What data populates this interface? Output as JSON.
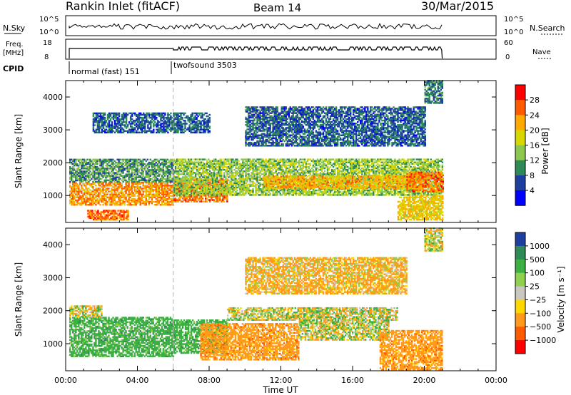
{
  "header": {
    "station": "Rankin Inlet (fitACF)",
    "beam": "Beam 14",
    "date": "30/Mar/2015"
  },
  "top_panels": {
    "nsky_label": "N.Sky",
    "nsky_ticks": [
      "10^5",
      "10^0"
    ],
    "nsearch_label": "N.Search",
    "nsearch_ticks": [
      "10^5",
      "10^0"
    ],
    "freq_label_1": "Freq.",
    "freq_label_2": "[MHz]",
    "freq_ticks": [
      "18",
      "8"
    ],
    "nave_label": "Nave",
    "nave_ticks": [
      "60",
      "0"
    ],
    "cpid_label": "CPID",
    "cpid_modes": [
      {
        "name": "normal (fast) 151",
        "start": 0.0
      },
      {
        "name": "twofsound 3503",
        "start": 6.0
      }
    ]
  },
  "chart_data": [
    {
      "type": "heatmap",
      "panel": "power",
      "xlabel": "Time UT",
      "ylabel": "Slant Range [km]",
      "x_ticks": [
        "00:00",
        "04:00",
        "08:00",
        "12:00",
        "16:00",
        "20:00",
        "00:00"
      ],
      "y_ticks": [
        "1000",
        "2000",
        "3000",
        "4000"
      ],
      "xlim": [
        0,
        24
      ],
      "ylim": [
        180,
        4500
      ],
      "colorbar_label": "Power [dB]",
      "colorbar_ticks": [
        "28",
        "24",
        "20",
        "16",
        "12",
        "8",
        "4"
      ],
      "colorbar_colors": [
        "#ff0000",
        "#ff5a00",
        "#ffaa00",
        "#d8d800",
        "#8cc850",
        "#2e8b57",
        "#1f3fa0",
        "#0000ff"
      ],
      "data_ends_at": 21.0,
      "bands": [
        {
          "t0": 0.2,
          "t1": 6.0,
          "r0": 700,
          "r1": 1400,
          "value": 24
        },
        {
          "t0": 0.2,
          "t1": 6.0,
          "r0": 1400,
          "r1": 2100,
          "value": 10
        },
        {
          "t0": 1.2,
          "t1": 3.5,
          "r0": 250,
          "r1": 550,
          "value": 26
        },
        {
          "t0": 6.0,
          "t1": 9.0,
          "r0": 800,
          "r1": 1500,
          "value": 26
        },
        {
          "t0": 6.0,
          "t1": 21.0,
          "r0": 1000,
          "r1": 2100,
          "value": 14
        },
        {
          "t0": 11.0,
          "t1": 19.5,
          "r0": 1200,
          "r1": 1600,
          "value": 22
        },
        {
          "t0": 18.5,
          "t1": 21.0,
          "r0": 250,
          "r1": 1000,
          "value": 20
        },
        {
          "t0": 19.0,
          "t1": 21.0,
          "r0": 1100,
          "r1": 1700,
          "value": 26
        },
        {
          "t0": 1.5,
          "t1": 8.0,
          "r0": 2900,
          "r1": 3500,
          "value": 6
        },
        {
          "t0": 10.0,
          "t1": 20.0,
          "r0": 2500,
          "r1": 3700,
          "value": 6
        },
        {
          "t0": 20.0,
          "t1": 21.0,
          "r0": 3800,
          "r1": 4500,
          "value": 8
        }
      ]
    },
    {
      "type": "heatmap",
      "panel": "velocity",
      "xlabel": "Time UT",
      "ylabel": "Slant Range [km]",
      "x_ticks": [
        "00:00",
        "04:00",
        "08:00",
        "12:00",
        "16:00",
        "20:00",
        "00:00"
      ],
      "y_ticks": [
        "1000",
        "2000",
        "3000",
        "4000"
      ],
      "xlim": [
        0,
        24
      ],
      "ylim": [
        180,
        4500
      ],
      "colorbar_label": "Velocity [m s⁻¹]",
      "colorbar_ticks": [
        "1000",
        "500",
        "100",
        "25",
        "−25",
        "−100",
        "−500",
        "−1000"
      ],
      "colorbar_colors": [
        "#1f3fa0",
        "#2e8b57",
        "#3cb043",
        "#8fd14f",
        "#c8c8c0",
        "#ffd700",
        "#ff9a1a",
        "#ff5a00",
        "#ff0000"
      ],
      "data_ends_at": 21.0,
      "bands": [
        {
          "t0": 0.2,
          "t1": 6.0,
          "r0": 600,
          "r1": 1800,
          "value": 300
        },
        {
          "t0": 0.2,
          "t1": 2.0,
          "r0": 1800,
          "r1": 2150,
          "value": 0
        },
        {
          "t0": 6.0,
          "t1": 9.0,
          "r0": 700,
          "r1": 1700,
          "value": 300
        },
        {
          "t0": 7.5,
          "t1": 13.0,
          "r0": 500,
          "r1": 1600,
          "value": -300
        },
        {
          "t0": 9.0,
          "t1": 18.5,
          "r0": 1700,
          "r1": 2100,
          "value": 0
        },
        {
          "t0": 13.0,
          "t1": 18.0,
          "r0": 1100,
          "r1": 1700,
          "value": 0
        },
        {
          "t0": 17.5,
          "t1": 21.0,
          "r0": 200,
          "r1": 1400,
          "value": -300
        },
        {
          "t0": 10.0,
          "t1": 19.0,
          "r0": 2500,
          "r1": 3600,
          "value": -150
        },
        {
          "t0": 20.0,
          "t1": 21.0,
          "r0": 3800,
          "r1": 4500,
          "value": 0
        }
      ]
    }
  ]
}
